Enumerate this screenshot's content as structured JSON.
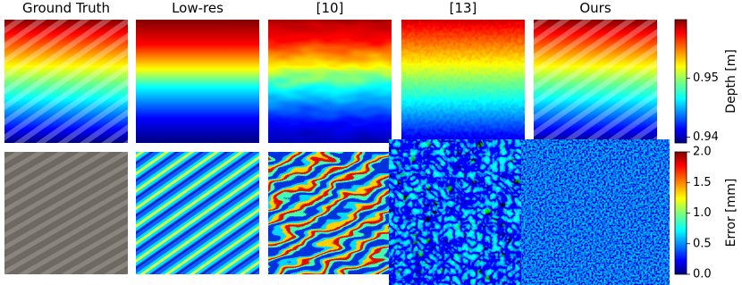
{
  "columns": [
    "Ground Truth",
    "Low-res",
    "[10]",
    "[13]",
    "Ours"
  ],
  "colorbars": [
    {
      "label": "Depth [m]",
      "lim": [
        0.939,
        0.96
      ],
      "ticks": [
        0.94,
        0.95
      ]
    },
    {
      "label": "Error [mm]",
      "lim": [
        0,
        2
      ],
      "ticks": [
        {
          "value": 0,
          "label": "0.0"
        },
        0.5,
        {
          "value": 1,
          "label": "1.0"
        },
        1.5,
        {
          "value": 2,
          "label": "2.0"
        }
      ]
    }
  ]
}
